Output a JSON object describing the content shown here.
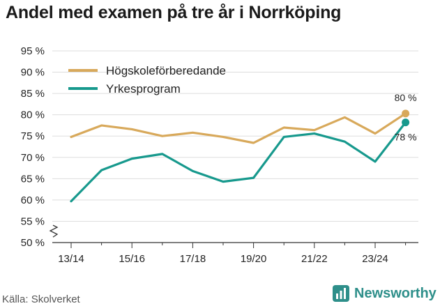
{
  "title": "Andel med examen på tre år i Norrköping",
  "source": "Källa: Skolverket",
  "brand": {
    "name": "Newsworthy",
    "icon": "newsworthy-chart-icon",
    "color": "#2e8f8a"
  },
  "chart_data": {
    "type": "line",
    "title": "Andel med examen på tre år i Norrköping",
    "x": [
      "13/14",
      "14/15",
      "15/16",
      "16/17",
      "17/18",
      "18/19",
      "19/20",
      "20/21",
      "21/22",
      "22/23",
      "23/24",
      "24/25"
    ],
    "x_tick_labels": [
      "13/14",
      "15/16",
      "17/18",
      "19/20",
      "21/22",
      "23/24"
    ],
    "y_ticks": [
      50,
      55,
      60,
      65,
      70,
      75,
      80,
      85,
      90,
      95
    ],
    "y_tick_labels": [
      "50 %",
      "55 %",
      "60 %",
      "65 %",
      "70 %",
      "75 %",
      "80 %",
      "85 %",
      "90 %",
      "95 %"
    ],
    "ylim": [
      50,
      95
    ],
    "y_axis_break": true,
    "grid": true,
    "legend_position": "top-left",
    "series": [
      {
        "name": "Högskoleförberedande",
        "color": "#d8a95b",
        "values": [
          74.8,
          77.5,
          76.6,
          75.0,
          75.8,
          74.8,
          73.4,
          77.0,
          76.4,
          79.4,
          75.6,
          80.3
        ],
        "end_label": "80 %"
      },
      {
        "name": "Yrkesprogram",
        "color": "#17998d",
        "values": [
          59.7,
          67.0,
          69.7,
          70.8,
          66.8,
          64.3,
          65.2,
          74.8,
          75.6,
          73.7,
          69.0,
          78.2
        ],
        "end_label": "78 %"
      }
    ]
  }
}
